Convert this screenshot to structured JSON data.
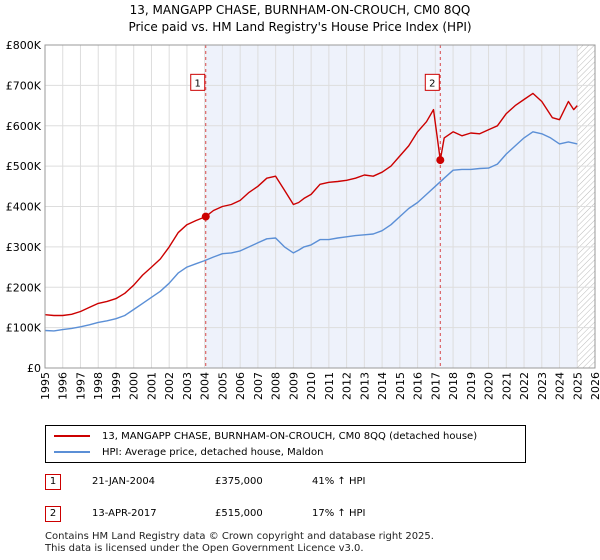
{
  "chart_data": {
    "type": "line",
    "title": "13, MANGAPP CHASE, BURNHAM-ON-CROUCH, CM0 8QQ",
    "subtitle": "Price paid vs. HM Land Registry's House Price Index (HPI)",
    "xlabel": "",
    "ylabel": "",
    "xlim": [
      1995,
      2026
    ],
    "ylim": [
      0,
      800000
    ],
    "x_ticks": [
      1995,
      1996,
      1997,
      1998,
      1999,
      2000,
      2001,
      2002,
      2003,
      2004,
      2005,
      2006,
      2007,
      2008,
      2009,
      2010,
      2011,
      2012,
      2013,
      2014,
      2015,
      2016,
      2017,
      2018,
      2019,
      2020,
      2021,
      2022,
      2023,
      2024,
      2025,
      2026
    ],
    "y_ticks": [
      {
        "value": 0,
        "label": "£0"
      },
      {
        "value": 100000,
        "label": "£100K"
      },
      {
        "value": 200000,
        "label": "£200K"
      },
      {
        "value": 300000,
        "label": "£300K"
      },
      {
        "value": 400000,
        "label": "£400K"
      },
      {
        "value": 500000,
        "label": "£500K"
      },
      {
        "value": 600000,
        "label": "£600K"
      },
      {
        "value": 700000,
        "label": "£700K"
      },
      {
        "value": 800000,
        "label": "£800K"
      }
    ],
    "grid": true,
    "forecast_start": 2025.0,
    "series": [
      {
        "name": "13, MANGAPP CHASE, BURNHAM-ON-CROUCH, CM0 8QQ (detached house)",
        "color": "#cc0000",
        "x": [
          1995.0,
          1995.5,
          1996.0,
          1996.5,
          1997.0,
          1997.5,
          1998.0,
          1998.5,
          1999.0,
          1999.5,
          2000.0,
          2000.5,
          2001.0,
          2001.5,
          2002.0,
          2002.5,
          2003.0,
          2003.5,
          2004.06,
          2004.5,
          2005.0,
          2005.5,
          2006.0,
          2006.5,
          2007.0,
          2007.5,
          2008.0,
          2008.5,
          2009.0,
          2009.3,
          2009.6,
          2010.0,
          2010.5,
          2011.0,
          2011.5,
          2012.0,
          2012.5,
          2013.0,
          2013.5,
          2014.0,
          2014.5,
          2015.0,
          2015.5,
          2016.0,
          2016.5,
          2016.9,
          2017.28,
          2017.5,
          2018.0,
          2018.5,
          2019.0,
          2019.5,
          2020.0,
          2020.5,
          2021.0,
          2021.5,
          2022.0,
          2022.5,
          2023.0,
          2023.3,
          2023.6,
          2024.0,
          2024.5,
          2024.8,
          2025.0
        ],
        "values": [
          132000,
          130000,
          130000,
          133000,
          140000,
          150000,
          160000,
          165000,
          172000,
          185000,
          205000,
          230000,
          250000,
          270000,
          300000,
          335000,
          355000,
          365000,
          375000,
          390000,
          400000,
          405000,
          415000,
          435000,
          450000,
          470000,
          475000,
          440000,
          405000,
          410000,
          420000,
          430000,
          455000,
          460000,
          462000,
          465000,
          470000,
          478000,
          475000,
          485000,
          500000,
          525000,
          550000,
          585000,
          610000,
          640000,
          515000,
          570000,
          585000,
          575000,
          582000,
          580000,
          590000,
          600000,
          630000,
          650000,
          665000,
          680000,
          660000,
          640000,
          620000,
          615000,
          660000,
          640000,
          650000
        ]
      },
      {
        "name": "HPI: Average price, detached house, Maldon",
        "color": "#5b8fd6",
        "x": [
          1995.0,
          1995.5,
          1996.0,
          1996.5,
          1997.0,
          1997.5,
          1998.0,
          1998.5,
          1999.0,
          1999.5,
          2000.0,
          2000.5,
          2001.0,
          2001.5,
          2002.0,
          2002.5,
          2003.0,
          2003.5,
          2004.0,
          2004.5,
          2005.0,
          2005.5,
          2006.0,
          2006.5,
          2007.0,
          2007.5,
          2008.0,
          2008.5,
          2009.0,
          2009.3,
          2009.6,
          2010.0,
          2010.5,
          2011.0,
          2011.5,
          2012.0,
          2012.5,
          2013.0,
          2013.5,
          2014.0,
          2014.5,
          2015.0,
          2015.5,
          2016.0,
          2016.5,
          2017.0,
          2017.5,
          2018.0,
          2018.5,
          2019.0,
          2019.5,
          2020.0,
          2020.5,
          2021.0,
          2021.5,
          2022.0,
          2022.5,
          2023.0,
          2023.5,
          2024.0,
          2024.5,
          2025.0
        ],
        "values": [
          93000,
          92000,
          95000,
          98000,
          102000,
          107000,
          113000,
          117000,
          122000,
          130000,
          145000,
          160000,
          175000,
          190000,
          210000,
          235000,
          250000,
          258000,
          266000,
          275000,
          283000,
          285000,
          290000,
          300000,
          310000,
          320000,
          322000,
          300000,
          285000,
          292000,
          300000,
          305000,
          318000,
          318000,
          322000,
          325000,
          328000,
          330000,
          332000,
          340000,
          355000,
          375000,
          395000,
          410000,
          430000,
          450000,
          470000,
          490000,
          492000,
          492000,
          494000,
          495000,
          505000,
          530000,
          550000,
          570000,
          585000,
          580000,
          570000,
          555000,
          560000,
          555000
        ]
      }
    ],
    "sales": [
      {
        "id": "1",
        "x": 2004.06,
        "price": 375000,
        "date": "21-JAN-2004",
        "price_label": "£375,000",
        "hpi_diff": "41% ↑ HPI"
      },
      {
        "id": "2",
        "x": 2017.28,
        "price": 515000,
        "date": "13-APR-2017",
        "price_label": "£515,000",
        "hpi_diff": "17% ↑ HPI"
      }
    ],
    "annotation_box_value": 710000
  },
  "legend": {
    "property_label": "13, MANGAPP CHASE, BURNHAM-ON-CROUCH, CM0 8QQ (detached house)",
    "hpi_label": "HPI: Average price, detached house, Maldon"
  },
  "footer": {
    "line1": "Contains HM Land Registry data © Crown copyright and database right 2025.",
    "line2": "This data is licensed under the Open Government Licence v3.0."
  }
}
